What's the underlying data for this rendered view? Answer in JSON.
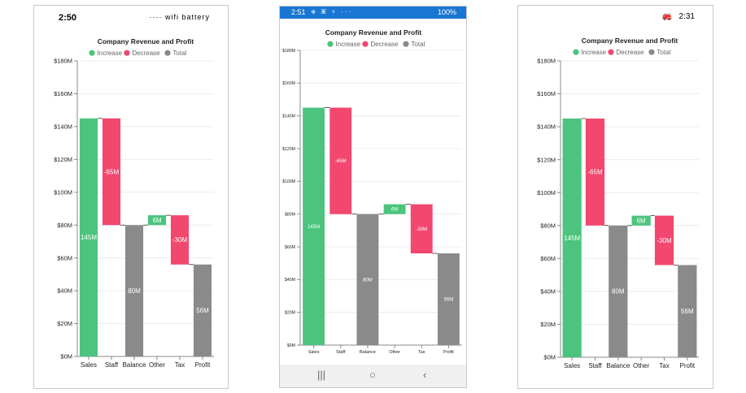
{
  "colors": {
    "increase": "#4cc47e",
    "decrease": "#f2476f",
    "total": "#8a8a8a"
  },
  "devices": {
    "ios": {
      "time": "2:50",
      "icons": "····  wifi  battery"
    },
    "android": {
      "time": "2:51",
      "icons_left": "⎈ ▣ ♆ ···",
      "battery": "100%",
      "nav_recent": "|||",
      "nav_home": "○",
      "nav_back": "‹"
    },
    "windows": {
      "time": "2:31",
      "icons": "🚒"
    }
  },
  "chart_data": {
    "type": "waterfall",
    "title": "Company Revenue and Profit",
    "legend": [
      "Increase",
      "Decrease",
      "Total"
    ],
    "legend_position": "top",
    "categories": [
      "Sales",
      "Staff",
      "Balance",
      "Other",
      "Tax",
      "Profit"
    ],
    "values": [
      145,
      -65,
      80,
      6,
      -30,
      56
    ],
    "kinds": [
      "increase",
      "decrease",
      "total",
      "increase",
      "decrease",
      "total"
    ],
    "data_labels": [
      "145M",
      "-65M",
      "80M",
      "6M",
      "-30M",
      "56M"
    ],
    "ylim": [
      0,
      180
    ],
    "y_ticks": [
      0,
      20,
      40,
      60,
      80,
      100,
      120,
      140,
      160,
      180
    ],
    "y_tick_labels": [
      "$0M",
      "$20M",
      "$40M",
      "$60M",
      "$80M",
      "$100M",
      "$120M",
      "$140M",
      "$160M",
      "$180M"
    ],
    "xlabel": "",
    "ylabel": "",
    "grid": true
  }
}
